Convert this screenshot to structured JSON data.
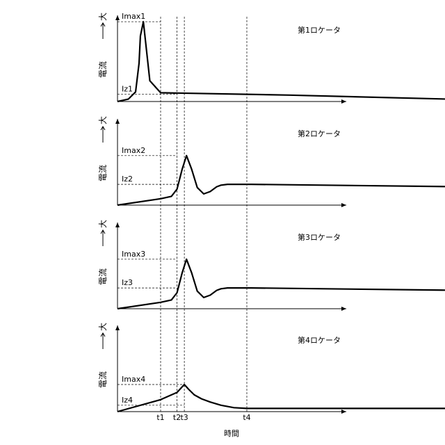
{
  "chart_data": [
    {
      "type": "line",
      "title": "第1ロケータ",
      "ylabel": "電流",
      "y_arrow_label": "大",
      "xlabel": "",
      "series": [
        {
          "x": [
            0,
            0.25,
            0.42,
            0.5,
            0.53,
            0.6,
            0.75,
            1.0,
            4.0,
            7.7
          ],
          "y": [
            0.0,
            0.03,
            0.12,
            0.48,
            0.82,
            1.0,
            0.26,
            0.11,
            0.08,
            0.03
          ]
        }
      ],
      "markers": [
        {
          "label": "Imax1",
          "y": 1.0,
          "x": 1.0
        },
        {
          "label": "Iz1",
          "y": 0.09,
          "x": 1.38
        }
      ],
      "ylim": [
        0,
        1.08
      ],
      "xlim": [
        0,
        8.1
      ]
    },
    {
      "type": "line",
      "title": "第2ロケータ",
      "ylabel": "電流",
      "y_arrow_label": "大",
      "xlabel": "",
      "series": [
        {
          "x": [
            0,
            1.0,
            1.25,
            1.38,
            1.5,
            1.6,
            1.72,
            1.85,
            2.0,
            2.15,
            2.3,
            2.4,
            2.55,
            2.7,
            2.9,
            3.1,
            8.0
          ],
          "y": [
            0.0,
            0.08,
            0.11,
            0.2,
            0.45,
            0.62,
            0.45,
            0.22,
            0.14,
            0.17,
            0.23,
            0.25,
            0.26,
            0.26,
            0.26,
            0.26,
            0.23
          ]
        }
      ],
      "markers": [
        {
          "label": "Imax2",
          "y": 0.62,
          "x": 1.38
        },
        {
          "label": "Iz2",
          "y": 0.26,
          "x": 1.38
        }
      ],
      "ylim": [
        0,
        1.08
      ],
      "xlim": [
        0,
        8.1
      ]
    },
    {
      "type": "line",
      "title": "第3ロケータ",
      "ylabel": "電流",
      "y_arrow_label": "大",
      "xlabel": "",
      "series": [
        {
          "x": [
            0,
            1.0,
            1.25,
            1.38,
            1.5,
            1.6,
            1.72,
            1.85,
            2.0,
            2.15,
            2.3,
            2.4,
            2.55,
            2.7,
            2.9,
            3.1,
            8.0
          ],
          "y": [
            0.0,
            0.08,
            0.11,
            0.2,
            0.45,
            0.62,
            0.45,
            0.22,
            0.14,
            0.17,
            0.23,
            0.25,
            0.26,
            0.26,
            0.26,
            0.26,
            0.23
          ]
        }
      ],
      "markers": [
        {
          "label": "Imax3",
          "y": 0.62,
          "x": 1.38
        },
        {
          "label": "Iz3",
          "y": 0.26,
          "x": 1.38
        }
      ],
      "ylim": [
        0,
        1.08
      ],
      "xlim": [
        0,
        8.1
      ]
    },
    {
      "type": "line",
      "title": "第4ロケータ",
      "ylabel": "電流",
      "y_arrow_label": "大",
      "xlabel": "時間",
      "x_ticks": [
        {
          "label": "t1",
          "x": 1.0
        },
        {
          "label": "t2",
          "x": 1.38
        },
        {
          "label": "t3",
          "x": 1.55
        },
        {
          "label": "t4",
          "x": 3.0
        }
      ],
      "series": [
        {
          "x": [
            0,
            1.0,
            1.38,
            1.55,
            1.65,
            1.78,
            1.95,
            2.15,
            2.4,
            2.7,
            3.0,
            8.0
          ],
          "y": [
            0.0,
            0.15,
            0.24,
            0.34,
            0.28,
            0.21,
            0.16,
            0.12,
            0.08,
            0.05,
            0.04,
            0.04
          ]
        }
      ],
      "markers": [
        {
          "label": "Imax4",
          "y": 0.34,
          "x": 1.55
        },
        {
          "label": "Iz4",
          "y": 0.08,
          "x": 1.55
        }
      ],
      "ylim": [
        0,
        1.08
      ],
      "xlim": [
        0,
        8.1
      ]
    }
  ]
}
